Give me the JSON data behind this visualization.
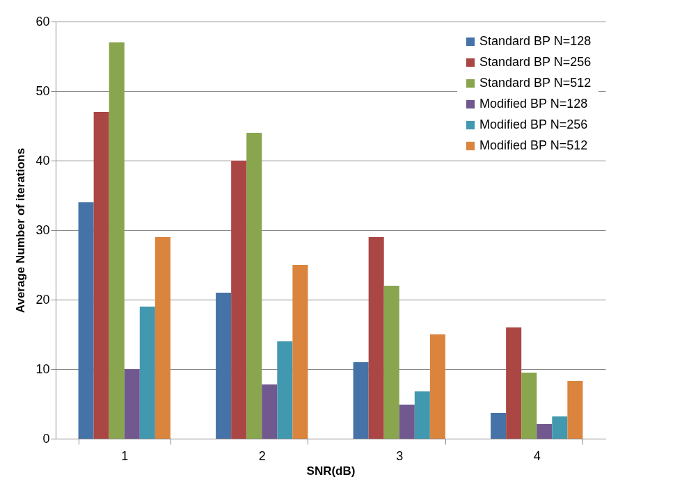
{
  "chart_data": {
    "type": "bar",
    "xlabel": "SNR(dB)",
    "ylabel": "Average Number of iterations",
    "categories": [
      "1",
      "2",
      "3",
      "4"
    ],
    "series": [
      {
        "name": "Standard BP N=128",
        "color": "#4572a7",
        "values": [
          34,
          21,
          11,
          3.7
        ]
      },
      {
        "name": "Standard BP N=256",
        "color": "#aa4643",
        "values": [
          47,
          40,
          29,
          16
        ]
      },
      {
        "name": "Standard BP N=512",
        "color": "#89a54e",
        "values": [
          57,
          44,
          22,
          9.5
        ]
      },
      {
        "name": "Modified BP N=128",
        "color": "#71588f",
        "values": [
          10,
          7.8,
          4.9,
          2.1
        ]
      },
      {
        "name": "Modified BP N=256",
        "color": "#4198af",
        "values": [
          19,
          14,
          6.8,
          3.2
        ]
      },
      {
        "name": "Modified BP N=512",
        "color": "#db843d",
        "values": [
          29,
          25,
          15,
          8.3
        ]
      }
    ],
    "ylim": [
      0,
      60
    ],
    "yticks": [
      0,
      10,
      20,
      30,
      40,
      50,
      60
    ],
    "grid": "y",
    "legend": "top right"
  }
}
